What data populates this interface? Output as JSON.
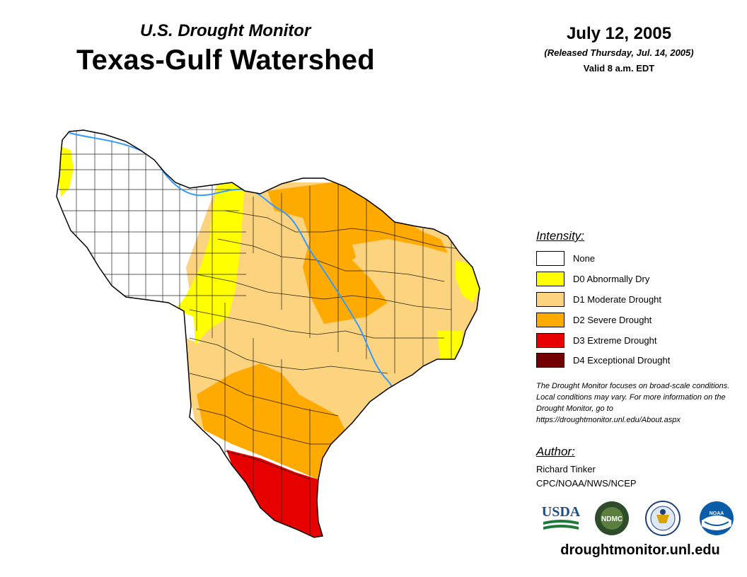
{
  "header": {
    "subtitle": "U.S. Drought Monitor",
    "title": "Texas-Gulf Watershed",
    "date": "July 12, 2005",
    "released": "(Released Thursday, Jul. 14, 2005)",
    "valid": "Valid 8 a.m. EDT"
  },
  "legend": {
    "heading": "Intensity:",
    "items": [
      {
        "label": "None",
        "color": "#ffffff"
      },
      {
        "label": "D0 Abnormally Dry",
        "color": "#ffff00"
      },
      {
        "label": "D1 Moderate Drought",
        "color": "#fcd37f"
      },
      {
        "label": "D2 Severe Drought",
        "color": "#ffaa00"
      },
      {
        "label": "D3 Extreme Drought",
        "color": "#e60000"
      },
      {
        "label": "D4 Exceptional Drought",
        "color": "#730000"
      }
    ]
  },
  "note": "The Drought Monitor focuses on broad-scale conditions. Local conditions may vary. For more information on the Drought Monitor, go to https://droughtmonitor.unl.edu/About.aspx",
  "author": {
    "heading": "Author:",
    "name": "Richard Tinker",
    "org": "CPC/NOAA/NWS/NCEP"
  },
  "logos": {
    "usda": "USDA",
    "ndmc": "NDMC",
    "noaa": "NOAA"
  },
  "footer": {
    "url": "droughtmonitor.unl.edu"
  },
  "map_colors": {
    "river": "#3399ff",
    "county_lines": "#000000"
  }
}
